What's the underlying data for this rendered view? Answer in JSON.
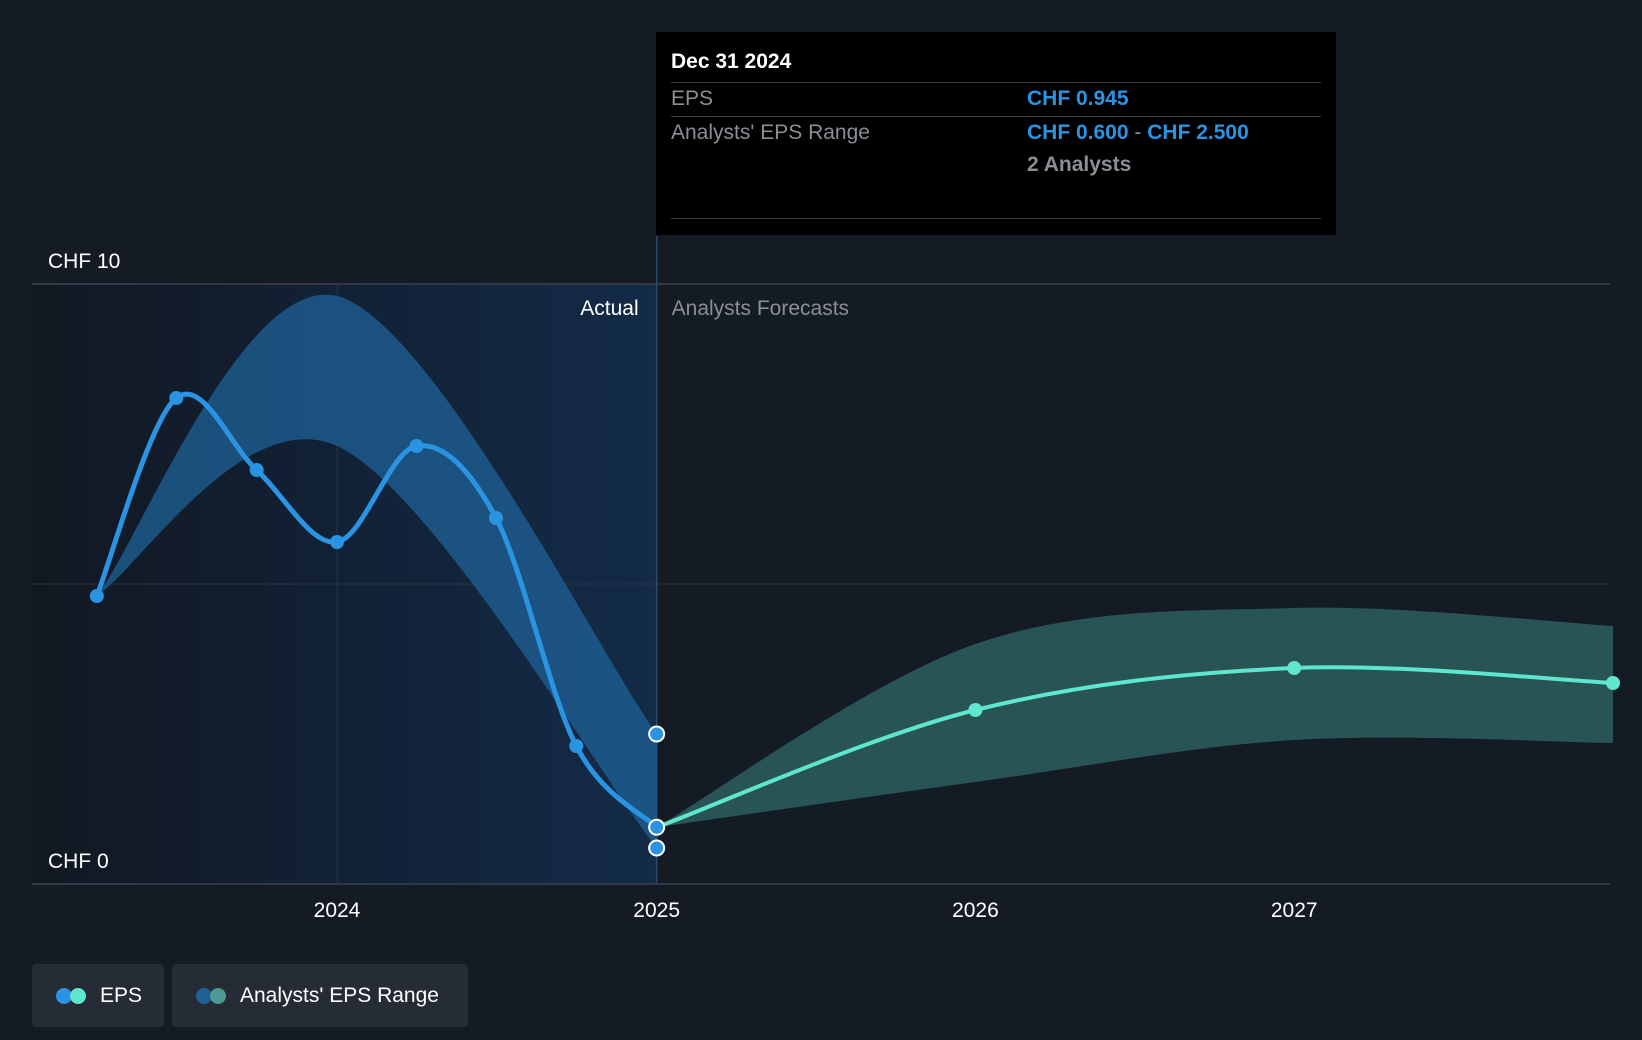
{
  "chart_data": {
    "type": "line",
    "y_axis": {
      "ticks": [
        "CHF 10",
        "CHF 0"
      ],
      "ylim": [
        0,
        10
      ]
    },
    "x_axis": {
      "ticks": [
        "2024",
        "2025",
        "2026",
        "2027"
      ]
    },
    "regions": {
      "actual": "Actual",
      "forecast": "Analysts Forecasts"
    },
    "series": [
      {
        "name": "EPS",
        "actual_points": [
          {
            "x": "2023-03-31",
            "y": 4.8
          },
          {
            "x": "2023-06-30",
            "y": 8.1
          },
          {
            "x": "2023-09-30",
            "y": 6.9
          },
          {
            "x": "2023-12-31",
            "y": 5.7
          },
          {
            "x": "2024-03-31",
            "y": 7.3
          },
          {
            "x": "2024-06-30",
            "y": 6.1
          },
          {
            "x": "2024-09-30",
            "y": 2.3
          },
          {
            "x": "2024-12-31",
            "y": 0.945
          }
        ],
        "forecast_points": [
          {
            "x": "2024-12-31",
            "y": 0.945
          },
          {
            "x": "2025-12-31",
            "y": 2.9
          },
          {
            "x": "2026-12-31",
            "y": 3.6
          },
          {
            "x": "2027-12-31",
            "y": 3.35
          }
        ]
      },
      {
        "name": "Analysts' EPS Range",
        "actual_range": [
          {
            "x": "2023-03-31",
            "low": 4.8,
            "high": 4.8
          },
          {
            "x": "2023-12-31",
            "low": 7.3,
            "high": 9.8
          },
          {
            "x": "2024-12-31",
            "low": 0.6,
            "high": 2.5
          }
        ],
        "forecast_range": [
          {
            "x": "2024-12-31",
            "low": 0.945,
            "high": 0.945
          },
          {
            "x": "2025-12-31",
            "low": 1.7,
            "high": 4.0
          },
          {
            "x": "2026-12-31",
            "low": 2.4,
            "high": 4.6
          },
          {
            "x": "2027-12-31",
            "low": 2.35,
            "high": 4.3
          }
        ]
      }
    ],
    "colors": {
      "eps_actual": "#2a93e2",
      "eps_forecast": "#5ee6ce",
      "range_actual": "#1e5f94",
      "range_forecast": "#2c5e5c",
      "background": "#151b24"
    }
  },
  "tooltip": {
    "date": "Dec 31 2024",
    "eps_label": "EPS",
    "eps_value": "CHF 0.945",
    "range_label": "Analysts' EPS Range",
    "range_low": "CHF 0.600",
    "range_sep": "-",
    "range_high": "CHF 2.500",
    "analysts": "2 Analysts"
  },
  "legend": [
    {
      "label": "EPS",
      "colors": [
        "#2a93e2",
        "#5ee6ce"
      ]
    },
    {
      "label": "Analysts' EPS Range",
      "colors": [
        "#1e5f94",
        "#4c9a94"
      ]
    }
  ]
}
